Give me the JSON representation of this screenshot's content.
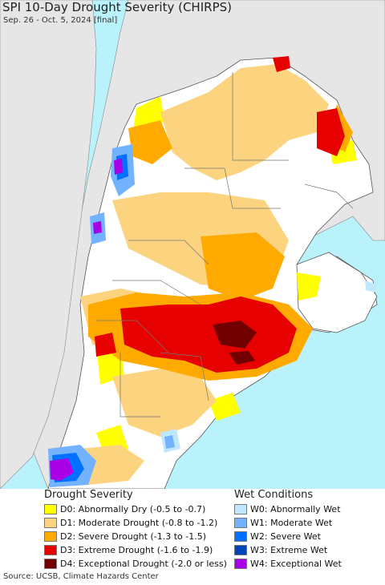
{
  "header": {
    "title": "SPI 10-Day Drought Severity (CHIRPS)",
    "subtitle": "Sep. 26 - Oct. 5, 2024 [final]"
  },
  "colors": {
    "ocean": "#b9f2fb",
    "other_land": "#e6e6e6",
    "no_data_land": "#ffffff",
    "border": "#555555"
  },
  "legend": {
    "drought_title": "Drought Severity",
    "wet_title": "Wet Conditions",
    "drought": [
      {
        "label": "D0: Abnormally Dry (-0.5 to -0.7)",
        "color": "#ffff00"
      },
      {
        "label": "D1: Moderate Drought (-0.8 to -1.2)",
        "color": "#fcd37f"
      },
      {
        "label": "D2: Severe Drought (-1.3 to -1.5)",
        "color": "#ffaa00"
      },
      {
        "label": "D3: Extreme Drought (-1.6 to -1.9)",
        "color": "#e60000"
      },
      {
        "label": "D4: Exceptional Drought (-2.0 or less)",
        "color": "#730000"
      }
    ],
    "wet": [
      {
        "label": "W0: Abnormally Wet",
        "color": "#bfe8ff"
      },
      {
        "label": "W1: Moderate Wet",
        "color": "#73b2ff"
      },
      {
        "label": "W2: Severe Wet",
        "color": "#0070ff"
      },
      {
        "label": "W3: Extreme Wet",
        "color": "#0044bb"
      },
      {
        "label": "W4: Exceptional Wet",
        "color": "#a900e6"
      }
    ]
  },
  "footer": {
    "source": "Source: UCSB, Climate Hazards Center"
  }
}
